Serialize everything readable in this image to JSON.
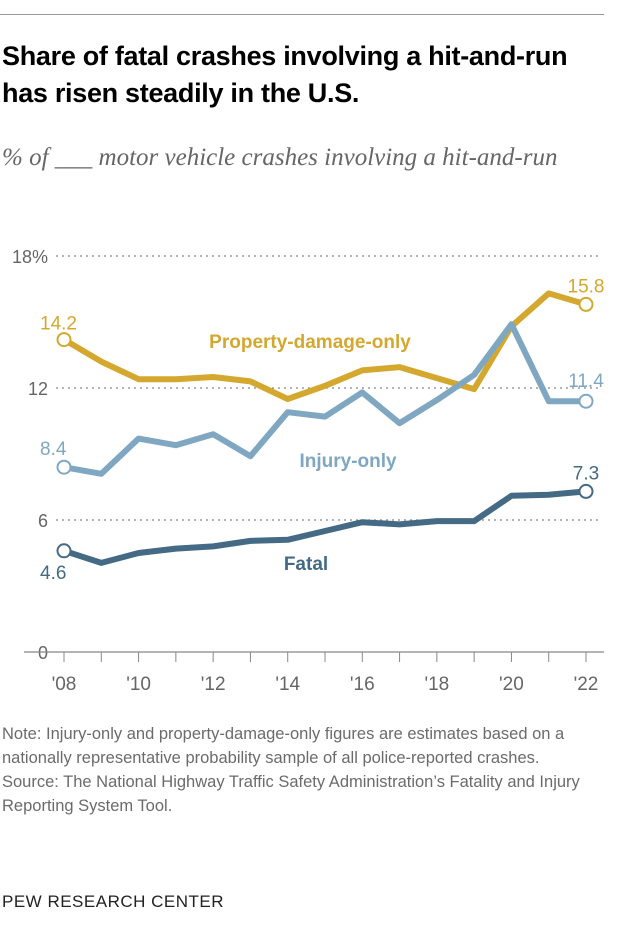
{
  "title": "Share of fatal crashes involving a hit-and-run has risen steadily in the U.S.",
  "subtitle": "% of ___ motor vehicle crashes involving a hit-and-run",
  "note": "Note: Injury-only and property-damage-only figures are estimates based on a nationally representative probability sample of all police-reported crashes.",
  "source": "Source: The National Highway Traffic Safety Administration’s Fatality and Injury Reporting System Tool.",
  "brand": "PEW RESEARCH CENTER",
  "chart_data": {
    "type": "line",
    "x": [
      2008,
      2009,
      2010,
      2011,
      2012,
      2013,
      2014,
      2015,
      2016,
      2017,
      2018,
      2019,
      2020,
      2021,
      2022
    ],
    "xtick_labels": [
      "'08",
      "'10",
      "'12",
      "'14",
      "'16",
      "'18",
      "'20",
      "'22"
    ],
    "xtick_values": [
      2008,
      2010,
      2012,
      2014,
      2016,
      2018,
      2020,
      2022
    ],
    "ylim": [
      0,
      18
    ],
    "yticks": [
      0,
      6,
      12,
      18
    ],
    "ytick_labels": [
      "0",
      "6",
      "12",
      "18%"
    ],
    "grid": true,
    "series": [
      {
        "name": "Property-damage-only",
        "color": "#D4A82F",
        "values": [
          14.2,
          13.2,
          12.4,
          12.4,
          12.5,
          12.3,
          11.5,
          12.1,
          12.8,
          12.95,
          12.45,
          11.95,
          14.8,
          16.3,
          15.8
        ],
        "start_label": "14.2",
        "end_label": "15.8"
      },
      {
        "name": "Injury-only",
        "color": "#7FA7C1",
        "values": [
          8.4,
          8.1,
          9.7,
          9.4,
          9.9,
          8.9,
          10.9,
          10.7,
          11.8,
          10.4,
          11.45,
          12.6,
          14.9,
          11.4,
          11.4
        ],
        "start_label": "8.4",
        "end_label": "11.4"
      },
      {
        "name": "Fatal",
        "color": "#456A85",
        "values": [
          4.6,
          4.05,
          4.5,
          4.7,
          4.8,
          5.05,
          5.1,
          5.5,
          5.9,
          5.8,
          5.95,
          5.95,
          7.1,
          7.15,
          7.3
        ],
        "start_label": "4.6",
        "end_label": "7.3"
      }
    ]
  }
}
